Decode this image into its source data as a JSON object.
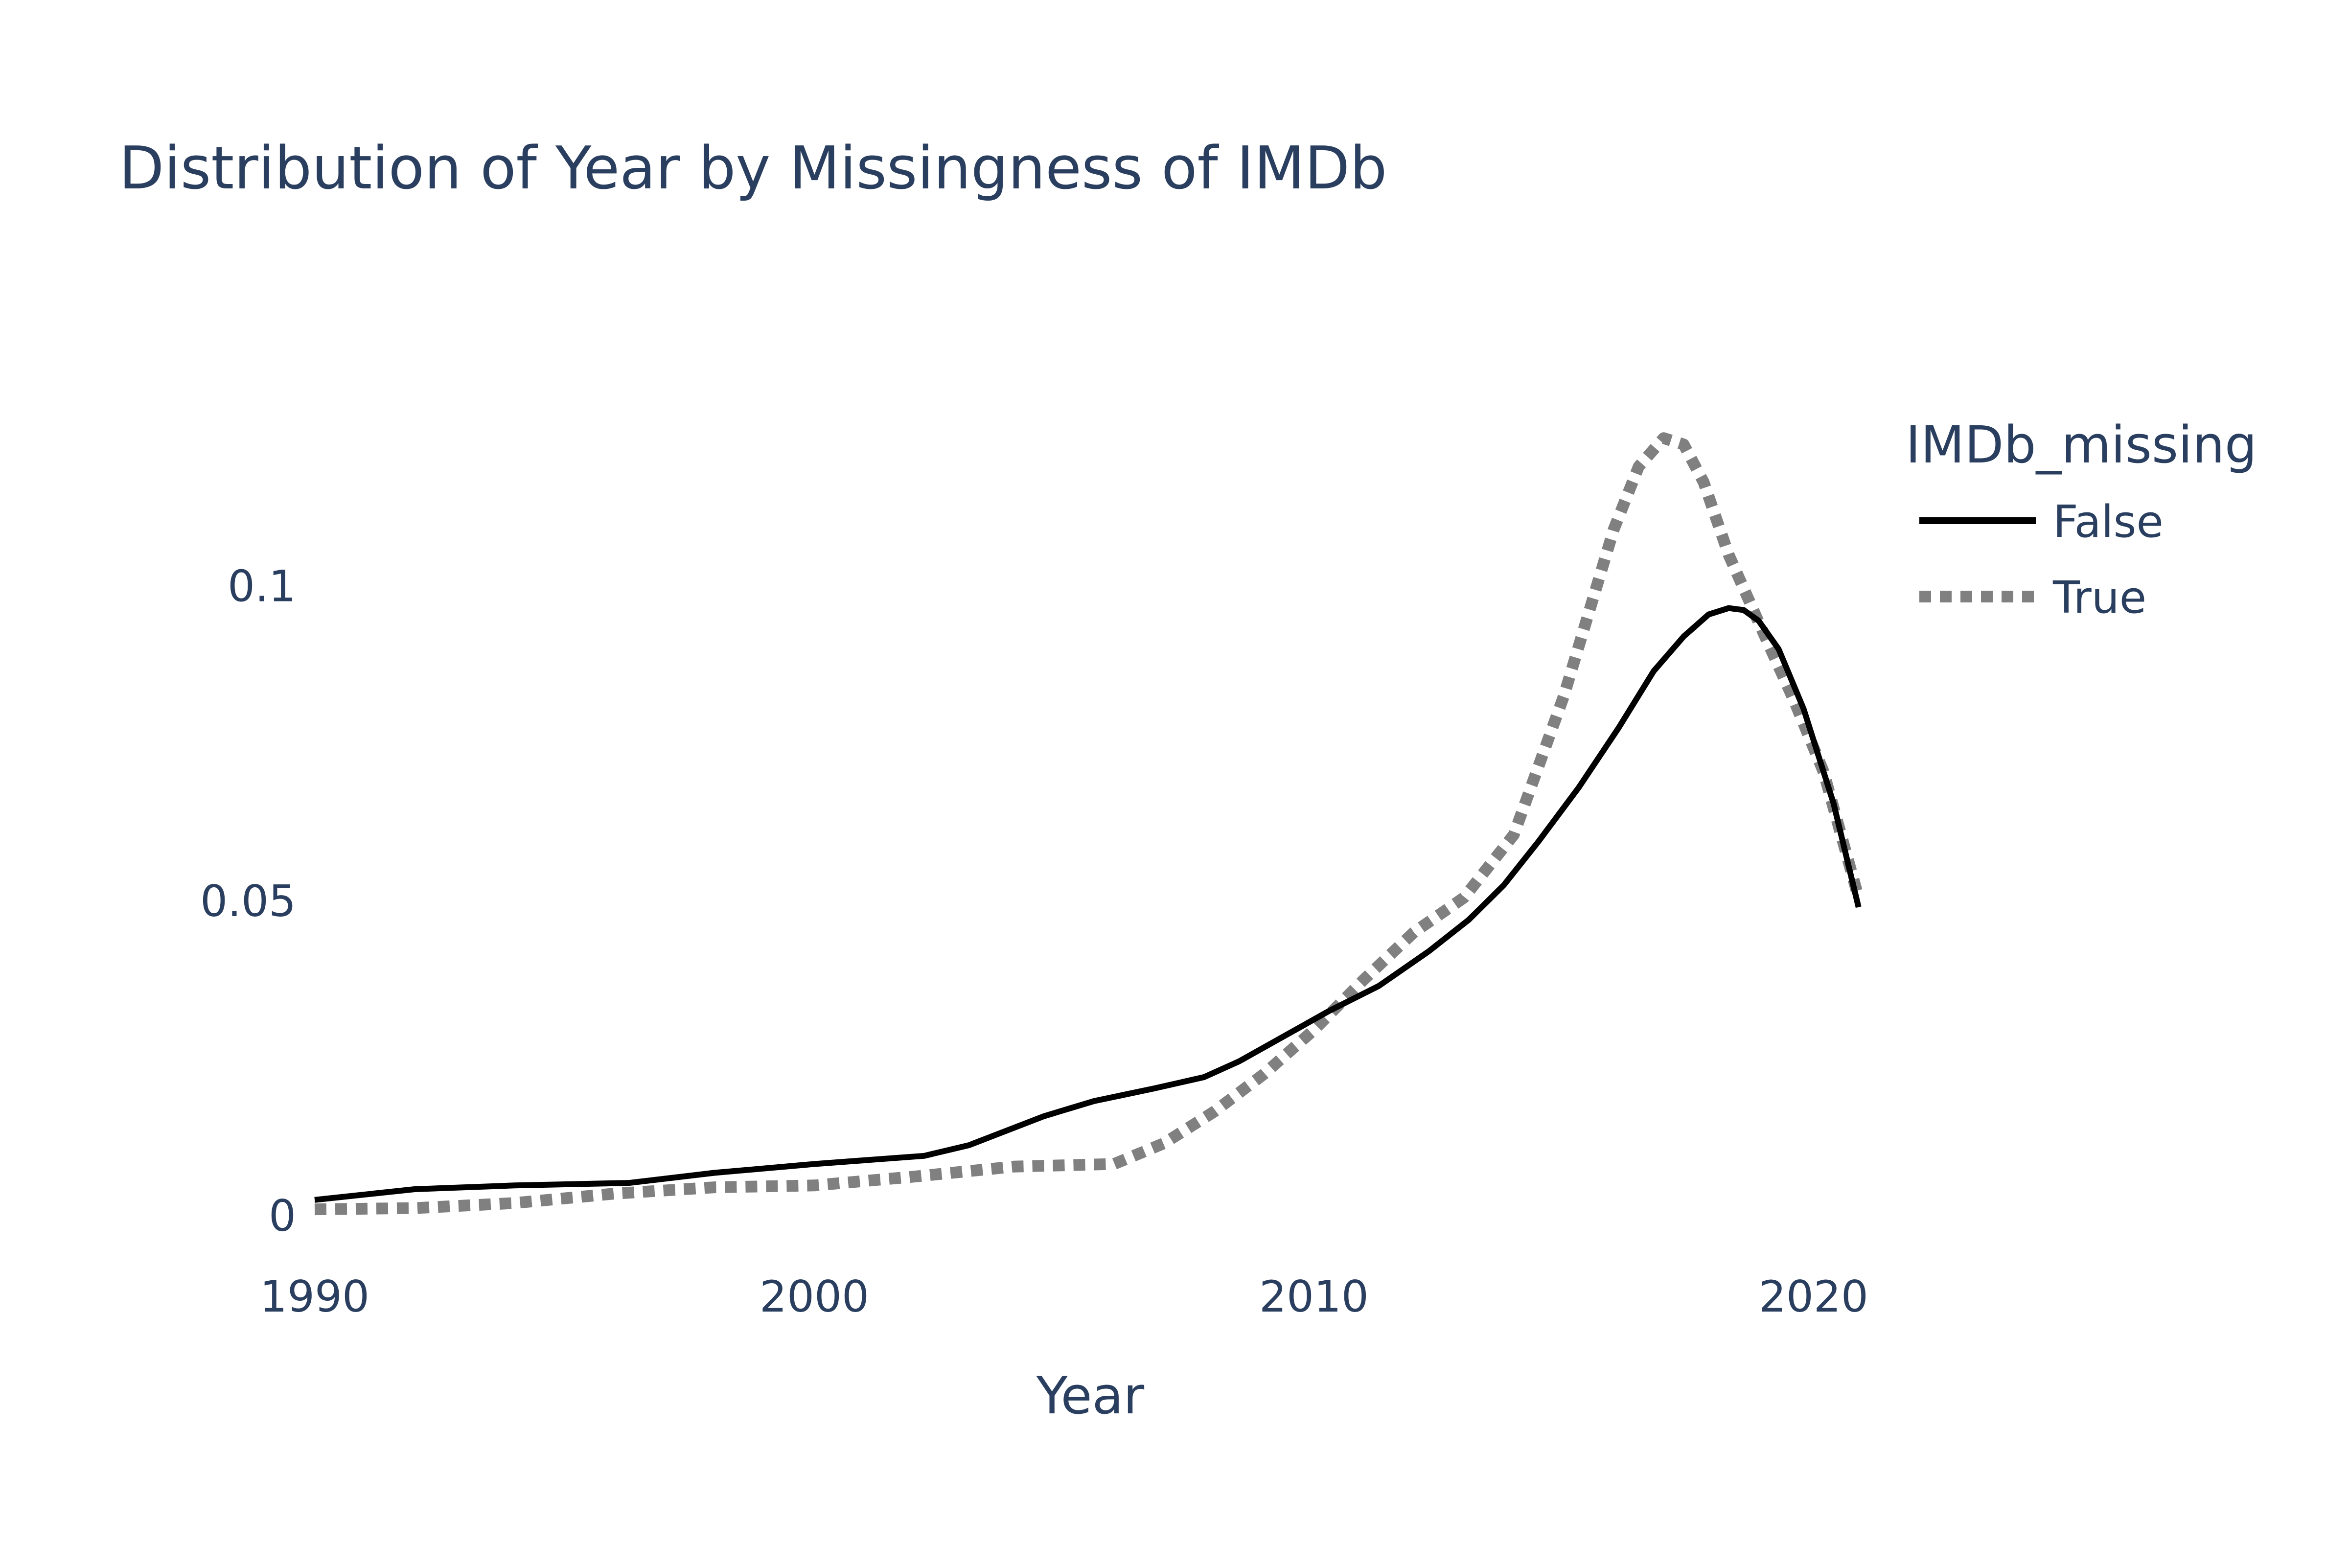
{
  "colors": {
    "text": "#2a3f5f",
    "background": "#ffffff",
    "false_line": "#000000",
    "true_line": "#808080"
  },
  "chart_data": {
    "type": "line",
    "title": "Distribution of Year by Missingness of IMDb",
    "xlabel": "Year",
    "ylabel": "",
    "xlim": [
      1990,
      2021
    ],
    "ylim": [
      0,
      0.125
    ],
    "x_ticks": [
      1990,
      2000,
      2010,
      2020
    ],
    "x_tick_labels": [
      "1990",
      "2000",
      "2010",
      "2020"
    ],
    "y_ticks": [
      0,
      0.05,
      0.1
    ],
    "y_tick_labels": [
      "0",
      "0.05",
      "0.1"
    ],
    "grid": false,
    "legend": {
      "title": "IMDb_missing",
      "position": "top-right"
    },
    "series": [
      {
        "name": "False",
        "line_style": "solid",
        "color": "#000000",
        "x": [
          1990,
          1992,
          1994,
          1996.3,
          1998,
          2000,
          2002.2,
          2003.1,
          2004.6,
          2005.6,
          2006.8,
          2007.8,
          2008.5,
          2009.4,
          2010.3,
          2011.3,
          2012.3,
          2013.1,
          2013.8,
          2014.5,
          2015.3,
          2016.1,
          2016.8,
          2017.4,
          2017.9,
          2018.3,
          2018.6,
          2018.9,
          2019.3,
          2019.8,
          2020.4,
          2020.9
        ],
        "y": [
          0.0025,
          0.0042,
          0.0048,
          0.0052,
          0.0068,
          0.0082,
          0.0095,
          0.0112,
          0.0158,
          0.0182,
          0.0202,
          0.022,
          0.0245,
          0.0285,
          0.0325,
          0.0365,
          0.042,
          0.047,
          0.0525,
          0.0595,
          0.068,
          0.0775,
          0.0865,
          0.092,
          0.0955,
          0.0965,
          0.0962,
          0.0945,
          0.09,
          0.0805,
          0.0655,
          0.049
        ]
      },
      {
        "name": "True",
        "line_style": "dotted",
        "color": "#808080",
        "x": [
          1990,
          1992,
          1994,
          1996,
          1998,
          2000,
          2002,
          2004,
          2006,
          2007,
          2008,
          2009,
          2010,
          2011,
          2012,
          2013,
          2014,
          2015,
          2016,
          2016.5,
          2017,
          2017.4,
          2017.8,
          2018.3,
          2019,
          2019.6,
          2020.2,
          2020.9
        ],
        "y": [
          0.001,
          0.0012,
          0.002,
          0.0035,
          0.0045,
          0.0048,
          0.0062,
          0.0078,
          0.0082,
          0.0115,
          0.0165,
          0.0225,
          0.0295,
          0.0375,
          0.045,
          0.0505,
          0.0605,
          0.0825,
          0.109,
          0.119,
          0.1235,
          0.1225,
          0.1165,
          0.105,
          0.0925,
          0.082,
          0.0705,
          0.0505
        ]
      }
    ]
  }
}
